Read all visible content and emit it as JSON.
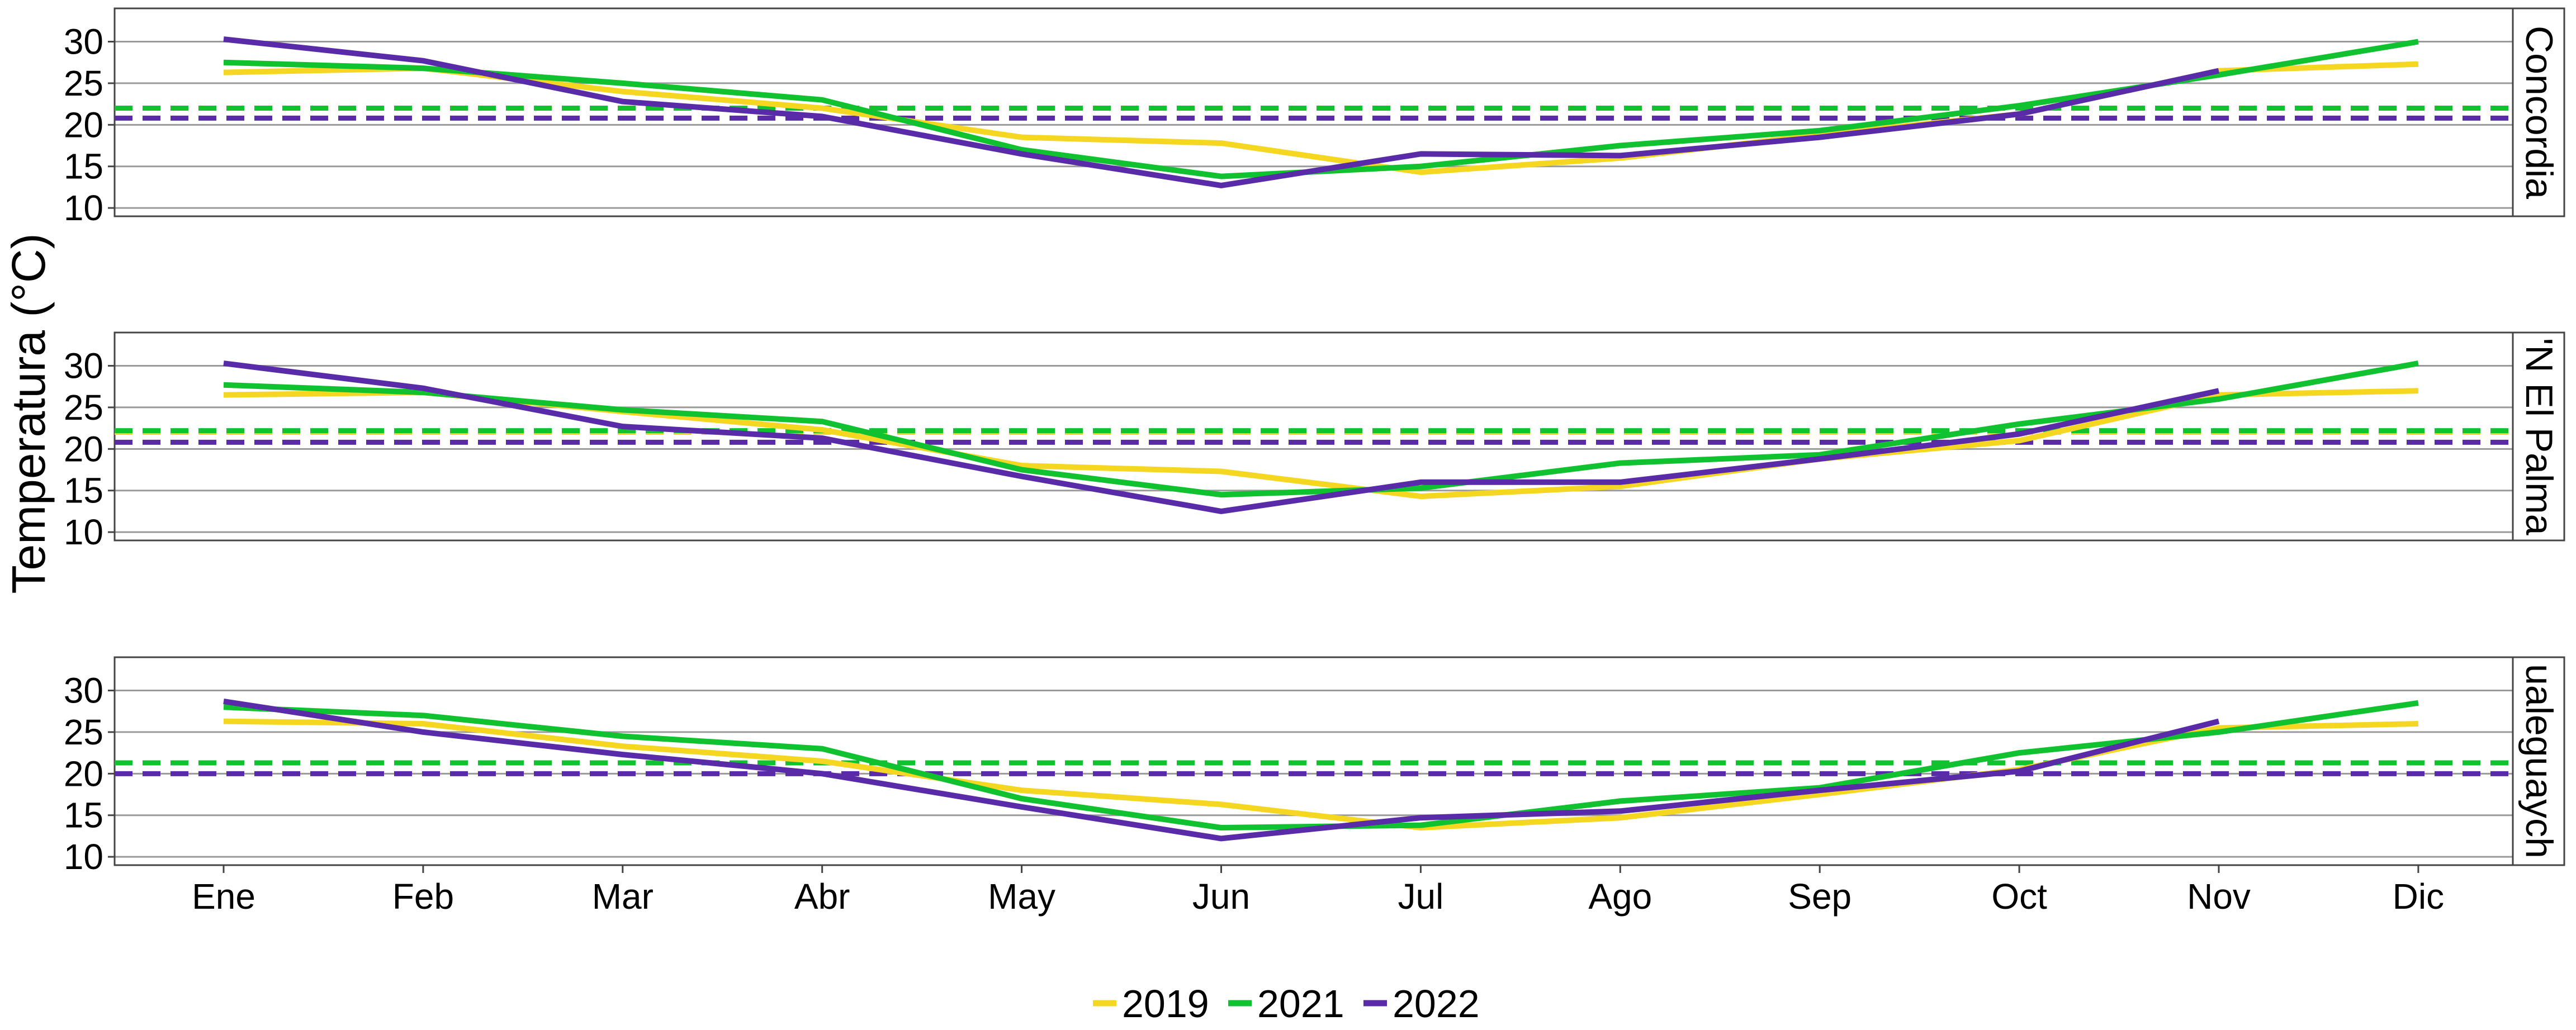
{
  "chart_data": {
    "type": "line",
    "ylabel": "Temperatura (°C)",
    "xlabel": "",
    "ylim": [
      9,
      34
    ],
    "y_ticks": [
      10,
      15,
      20,
      25,
      30
    ],
    "x_tick_labels": [
      "Ene",
      "Feb",
      "Mar",
      "Abr",
      "May",
      "Jun",
      "Jul",
      "Ago",
      "Sep",
      "Oct",
      "Nov",
      "Dic"
    ],
    "grid": "horizontal",
    "legend_position": "bottom",
    "legend": [
      "2019",
      "2021",
      "2022"
    ],
    "colors": {
      "2019": "#F5D722",
      "2021": "#11C230",
      "2022": "#5A2BA8"
    },
    "panels": [
      {
        "name": "Concordia",
        "strip_label": "Concordia",
        "series": [
          {
            "name": "2019",
            "values": [
              26.3,
              26.8,
              24.0,
              22.0,
              18.5,
              17.8,
              14.3,
              16.0,
              18.8,
              21.3,
              26.5,
              27.3
            ],
            "mean": 22.0
          },
          {
            "name": "2021",
            "values": [
              27.5,
              26.8,
              25.0,
              23.0,
              17.0,
              13.8,
              15.0,
              17.5,
              19.3,
              22.3,
              26.0,
              30.0
            ],
            "mean": 22.0
          },
          {
            "name": "2022",
            "values": [
              30.3,
              27.7,
              22.8,
              21.0,
              16.5,
              12.7,
              16.5,
              16.3,
              18.5,
              21.3,
              26.5,
              null
            ],
            "mean": 20.8
          }
        ]
      },
      {
        "name": "El Palmar",
        "strip_label": "'N El Palma",
        "series": [
          {
            "name": "2019",
            "values": [
              26.5,
              26.8,
              24.5,
              22.3,
              18.0,
              17.3,
              14.3,
              15.5,
              18.8,
              21.0,
              26.5,
              27.0
            ],
            "mean": 22.0
          },
          {
            "name": "2021",
            "values": [
              27.7,
              26.8,
              24.7,
              23.3,
              17.5,
              14.5,
              15.3,
              18.3,
              19.3,
              23.0,
              26.0,
              30.3
            ],
            "mean": 22.2
          },
          {
            "name": "2022",
            "values": [
              30.3,
              27.3,
              22.7,
              21.3,
              16.7,
              12.5,
              16.0,
              16.0,
              18.8,
              21.8,
              27.0,
              null
            ],
            "mean": 20.8
          }
        ]
      },
      {
        "name": "Gualeguaychú",
        "strip_label": "ualeguaych",
        "series": [
          {
            "name": "2019",
            "values": [
              26.3,
              26.0,
              23.3,
              21.5,
              18.0,
              16.3,
              13.5,
              14.7,
              17.5,
              20.5,
              25.5,
              26.0
            ],
            "mean": 21.3
          },
          {
            "name": "2021",
            "values": [
              28.0,
              27.0,
              24.5,
              23.0,
              17.0,
              13.5,
              13.8,
              16.7,
              18.3,
              22.5,
              25.0,
              28.5
            ],
            "mean": 21.3
          },
          {
            "name": "2022",
            "values": [
              28.7,
              25.0,
              22.3,
              20.0,
              16.0,
              12.2,
              14.7,
              15.5,
              18.0,
              20.3,
              26.3,
              null
            ],
            "mean": 20.0
          }
        ]
      }
    ]
  }
}
